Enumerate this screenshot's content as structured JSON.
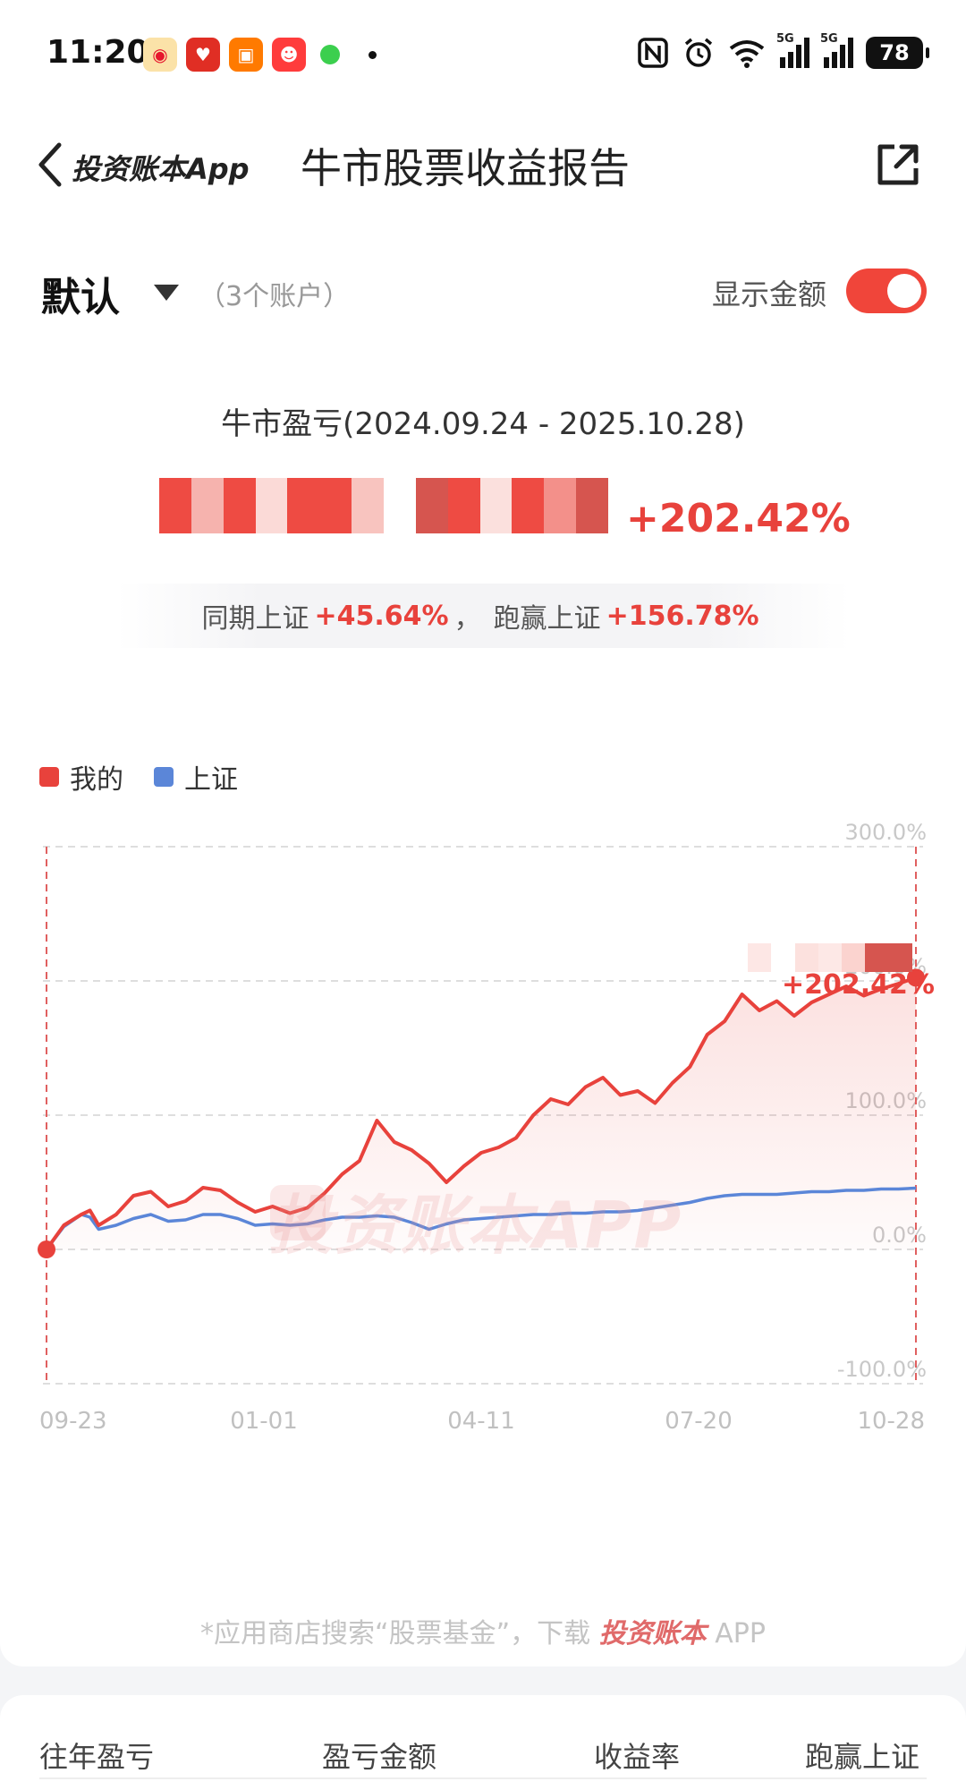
{
  "status_bar": {
    "time": "11:20",
    "network_labels": [
      "5G",
      "5G"
    ],
    "battery": "78",
    "icons": [
      "weibo-icon",
      "pinduoduo-icon",
      "taobao-icon",
      "tmall-icon",
      "wechat-dot-icon",
      "nfc-icon",
      "alarm-icon",
      "wifi-icon",
      "signal-icon",
      "signal-icon",
      "battery-icon"
    ]
  },
  "header": {
    "brand": "投资账本App",
    "title": "牛市股票收益报告",
    "icons": [
      "back-chevron-icon",
      "share-icon"
    ]
  },
  "account": {
    "name": "默认",
    "count": "（3个账户）",
    "show_amount_label": "显示金额",
    "show_amount_on": true
  },
  "summary": {
    "title": "牛市盈亏(2024.09.24 - 2025.10.28)",
    "return_pct": "+202.42%",
    "compare_prefix": "同期上证",
    "compare_index_pct": "+45.64%",
    "compare_sep": "，",
    "beat_prefix": "跑赢上证",
    "beat_pct": "+156.78%"
  },
  "legend": {
    "mine": "我的",
    "index": "上证"
  },
  "colors": {
    "mine": "#e8423c",
    "index": "#5b86d8",
    "toggle_on": "#f0453a"
  },
  "chart_data": {
    "type": "line",
    "x_tick_labels": [
      "09-23",
      "01-01",
      "04-11",
      "07-20",
      "10-28"
    ],
    "y_tick_labels": [
      "300.0%",
      "200.0%",
      "100.0%",
      "0.0%",
      "-100.0%"
    ],
    "ylim": [
      -100,
      300
    ],
    "grid": true,
    "legend_position": "top-left",
    "end_label": "+202.42%",
    "x_index": [
      0,
      0.02,
      0.04,
      0.05,
      0.06,
      0.08,
      0.1,
      0.12,
      0.14,
      0.16,
      0.18,
      0.2,
      0.22,
      0.24,
      0.26,
      0.28,
      0.3,
      0.32,
      0.34,
      0.36,
      0.38,
      0.4,
      0.42,
      0.44,
      0.46,
      0.48,
      0.5,
      0.52,
      0.54,
      0.56,
      0.58,
      0.6,
      0.62,
      0.64,
      0.66,
      0.68,
      0.7,
      0.72,
      0.74,
      0.76,
      0.78,
      0.8,
      0.82,
      0.84,
      0.86,
      0.88,
      0.9,
      0.92,
      0.94,
      0.96,
      0.98,
      1.0
    ],
    "series": [
      {
        "name": "我的",
        "values": [
          0,
          18,
          26,
          29,
          18,
          26,
          40,
          43,
          32,
          36,
          46,
          44,
          35,
          28,
          32,
          27,
          31,
          42,
          56,
          66,
          96,
          80,
          74,
          64,
          50,
          62,
          72,
          76,
          83,
          100,
          112,
          108,
          121,
          128,
          115,
          118,
          109,
          124,
          136,
          160,
          170,
          190,
          178,
          185,
          174,
          184,
          190,
          196,
          189,
          194,
          198,
          202.42
        ]
      },
      {
        "name": "上证",
        "values": [
          0,
          17,
          26,
          24,
          15,
          18,
          23,
          26,
          21,
          22,
          26,
          26,
          23,
          18,
          19,
          18,
          19,
          22,
          24,
          24,
          25,
          24,
          20,
          15,
          19,
          22,
          23,
          24,
          25,
          26,
          26,
          27,
          27,
          28,
          28,
          29,
          31,
          33,
          35,
          38,
          40,
          41,
          41,
          41,
          42,
          43,
          43,
          44,
          44,
          45,
          45,
          45.64
        ]
      }
    ]
  },
  "footnote": {
    "prefix": "*应用商店搜索“股票基金”，下载",
    "brand": "投资账本",
    "suffix": " APP"
  },
  "watermark": "投资账本APP",
  "table": {
    "headers": [
      "往年盈亏",
      "盈亏金额",
      "收益率",
      "跑赢上证"
    ]
  }
}
